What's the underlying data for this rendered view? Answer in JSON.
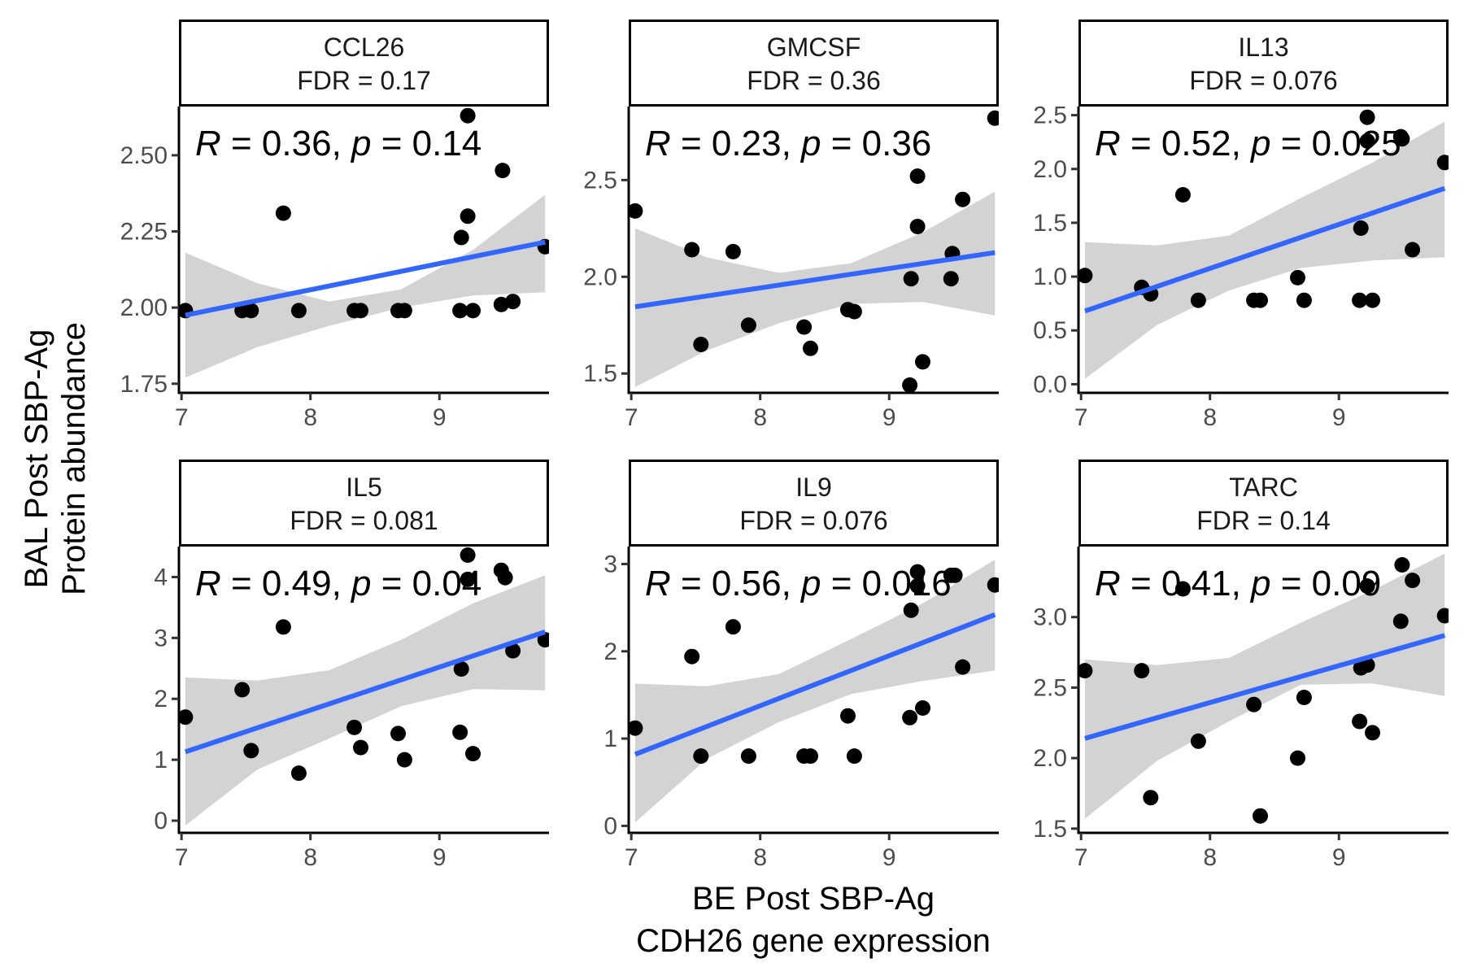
{
  "chart_data": {
    "type": "scatter",
    "title": "",
    "xlabel": [
      "BE Post SBP-Ag",
      "CDH26 gene expression"
    ],
    "ylabel": [
      "BAL Post SBP-Ag",
      "Protein abundance"
    ],
    "colors": {
      "point": "#000000",
      "fit_line": "#3366FF",
      "ribbon": "#D3D3D3",
      "strip_fill": "#FFFFFF"
    },
    "panels": [
      {
        "name": "CCL26",
        "fdr_label": "FDR = 0.17",
        "annotation": {
          "r": "0.36",
          "p": "0.14"
        },
        "xlim": [
          6.98,
          9.85
        ],
        "ylim": [
          1.72,
          2.66
        ],
        "xticks": [
          7,
          8,
          9
        ],
        "yticks": [
          1.75,
          2.0,
          2.25,
          2.5
        ],
        "yticklabels": [
          "1.75",
          "2.00",
          "2.25",
          "2.50"
        ],
        "x": [
          7.03,
          7.47,
          7.54,
          7.79,
          7.91,
          8.34,
          8.39,
          8.68,
          8.73,
          9.16,
          9.17,
          9.22,
          9.26,
          9.48,
          9.49,
          9.57,
          9.82,
          9.22
        ],
        "y": [
          1.99,
          1.99,
          1.99,
          2.31,
          1.99,
          1.99,
          1.99,
          1.99,
          1.99,
          1.99,
          2.23,
          2.3,
          1.99,
          2.01,
          2.45,
          2.02,
          2.2,
          2.63
        ],
        "fit": {
          "x0": 7.03,
          "y0": 1.975,
          "x1": 9.82,
          "y1": 2.215
        },
        "band": {
          "lower": [
            1.77,
            1.87,
            1.94,
            2.0,
            2.04,
            2.05
          ],
          "upper": [
            2.18,
            2.08,
            2.02,
            2.06,
            2.19,
            2.37
          ]
        }
      },
      {
        "name": "GMCSF",
        "fdr_label": "FDR = 0.36",
        "annotation": {
          "r": "0.23",
          "p": "0.36"
        },
        "xlim": [
          6.98,
          9.85
        ],
        "ylim": [
          1.4,
          2.88
        ],
        "xticks": [
          7,
          8,
          9
        ],
        "yticks": [
          1.5,
          2.0,
          2.5
        ],
        "yticklabels": [
          "1.5",
          "2.0",
          "2.5"
        ],
        "x": [
          7.03,
          7.47,
          7.54,
          7.79,
          7.91,
          8.34,
          8.39,
          8.68,
          8.73,
          9.16,
          9.17,
          9.22,
          9.22,
          9.26,
          9.48,
          9.49,
          9.57,
          9.82
        ],
        "y": [
          2.34,
          2.14,
          1.65,
          2.13,
          1.75,
          1.74,
          1.63,
          1.83,
          1.82,
          1.44,
          1.99,
          2.52,
          2.26,
          1.56,
          1.99,
          2.12,
          2.4,
          2.82
        ],
        "fit": {
          "x0": 7.03,
          "y0": 1.845,
          "x1": 9.82,
          "y1": 2.125
        },
        "band": {
          "lower": [
            1.43,
            1.62,
            1.76,
            1.86,
            1.87,
            1.8
          ],
          "upper": [
            2.25,
            2.1,
            2.02,
            2.07,
            2.23,
            2.44
          ]
        }
      },
      {
        "name": "IL13",
        "fdr_label": "FDR = 0.076",
        "annotation": {
          "r": "0.52",
          "p": "0.025"
        },
        "xlim": [
          6.98,
          9.85
        ],
        "ylim": [
          -0.08,
          2.58
        ],
        "xticks": [
          7,
          8,
          9
        ],
        "yticks": [
          0.0,
          0.5,
          1.0,
          1.5,
          2.0,
          2.5
        ],
        "yticklabels": [
          "0.0",
          "0.5",
          "1.0",
          "1.5",
          "2.0",
          "2.5"
        ],
        "x": [
          7.03,
          7.47,
          7.54,
          7.79,
          7.91,
          8.34,
          8.39,
          8.68,
          8.73,
          9.16,
          9.17,
          9.22,
          9.22,
          9.26,
          9.48,
          9.49,
          9.57,
          9.82
        ],
        "y": [
          1.01,
          0.9,
          0.84,
          1.76,
          0.78,
          0.78,
          0.78,
          0.99,
          0.78,
          0.78,
          1.45,
          2.48,
          2.26,
          0.78,
          2.3,
          2.28,
          1.25,
          2.06
        ],
        "fit": {
          "x0": 7.03,
          "y0": 0.68,
          "x1": 9.82,
          "y1": 1.82
        },
        "band": {
          "lower": [
            0.05,
            0.55,
            0.87,
            1.08,
            1.15,
            1.18
          ],
          "upper": [
            1.32,
            1.29,
            1.38,
            1.73,
            2.06,
            2.44
          ]
        }
      },
      {
        "name": "IL5",
        "fdr_label": "FDR = 0.081",
        "annotation": {
          "r": "0.49",
          "p": "0.04"
        },
        "xlim": [
          6.98,
          9.85
        ],
        "ylim": [
          -0.2,
          4.5
        ],
        "xticks": [
          7,
          8,
          9
        ],
        "yticks": [
          0,
          1,
          2,
          3,
          4
        ],
        "yticklabels": [
          "0",
          "1",
          "2",
          "3",
          "4"
        ],
        "x": [
          7.03,
          7.47,
          7.54,
          7.79,
          7.91,
          8.34,
          8.39,
          8.68,
          8.73,
          9.16,
          9.17,
          9.22,
          9.22,
          9.26,
          9.48,
          9.51,
          9.57,
          9.82
        ],
        "y": [
          1.7,
          2.15,
          1.15,
          3.18,
          0.78,
          1.53,
          1.2,
          1.43,
          1.0,
          1.45,
          2.49,
          3.96,
          4.36,
          1.1,
          4.11,
          3.99,
          2.79,
          2.97
        ],
        "fit": {
          "x0": 7.03,
          "y0": 1.13,
          "x1": 9.82,
          "y1": 3.1
        },
        "band": {
          "lower": [
            -0.08,
            0.84,
            1.35,
            1.88,
            2.16,
            2.14
          ],
          "upper": [
            2.35,
            2.3,
            2.47,
            2.97,
            3.57,
            4.03
          ]
        }
      },
      {
        "name": "IL9",
        "fdr_label": "FDR = 0.076",
        "annotation": {
          "r": "0.56",
          "p": "0.016"
        },
        "xlim": [
          6.98,
          9.85
        ],
        "ylim": [
          -0.08,
          3.2
        ],
        "xticks": [
          7,
          8,
          9
        ],
        "yticks": [
          0,
          1,
          2,
          3
        ],
        "yticklabels": [
          "0",
          "1",
          "2",
          "3"
        ],
        "x": [
          7.03,
          7.47,
          7.54,
          7.79,
          7.91,
          8.34,
          8.39,
          8.68,
          8.73,
          9.16,
          9.17,
          9.22,
          9.22,
          9.26,
          9.48,
          9.51,
          9.57,
          9.82
        ],
        "y": [
          1.12,
          1.94,
          0.8,
          2.28,
          0.8,
          0.8,
          0.8,
          1.26,
          0.8,
          1.24,
          2.47,
          2.75,
          2.91,
          1.35,
          2.87,
          2.87,
          1.82,
          2.76
        ],
        "fit": {
          "x0": 7.03,
          "y0": 0.82,
          "x1": 9.82,
          "y1": 2.42
        },
        "band": {
          "lower": [
            0.04,
            0.77,
            1.19,
            1.51,
            1.66,
            1.78
          ],
          "upper": [
            1.63,
            1.6,
            1.74,
            2.14,
            2.55,
            3.05
          ]
        }
      },
      {
        "name": "TARC",
        "fdr_label": "FDR = 0.14",
        "annotation": {
          "r": "0.41",
          "p": "0.09"
        },
        "xlim": [
          6.98,
          9.85
        ],
        "ylim": [
          1.47,
          3.5
        ],
        "xticks": [
          7,
          8,
          9
        ],
        "yticks": [
          1.5,
          2.0,
          2.5,
          3.0
        ],
        "yticklabels": [
          "1.5",
          "2.0",
          "2.5",
          "3.0"
        ],
        "x": [
          7.03,
          7.47,
          7.54,
          7.79,
          7.91,
          8.34,
          8.39,
          8.68,
          8.73,
          9.16,
          9.17,
          9.22,
          9.22,
          9.26,
          9.48,
          9.49,
          9.57,
          9.82
        ],
        "y": [
          2.62,
          2.62,
          1.72,
          3.2,
          2.12,
          2.38,
          1.59,
          2.0,
          2.43,
          2.26,
          2.64,
          2.66,
          3.22,
          2.18,
          2.97,
          3.37,
          3.26,
          3.01
        ],
        "fit": {
          "x0": 7.03,
          "y0": 2.14,
          "x1": 9.82,
          "y1": 2.87
        },
        "band": {
          "lower": [
            1.57,
            1.98,
            2.26,
            2.52,
            2.53,
            2.44
          ],
          "upper": [
            2.7,
            2.66,
            2.71,
            2.96,
            3.19,
            3.45
          ]
        }
      }
    ]
  }
}
